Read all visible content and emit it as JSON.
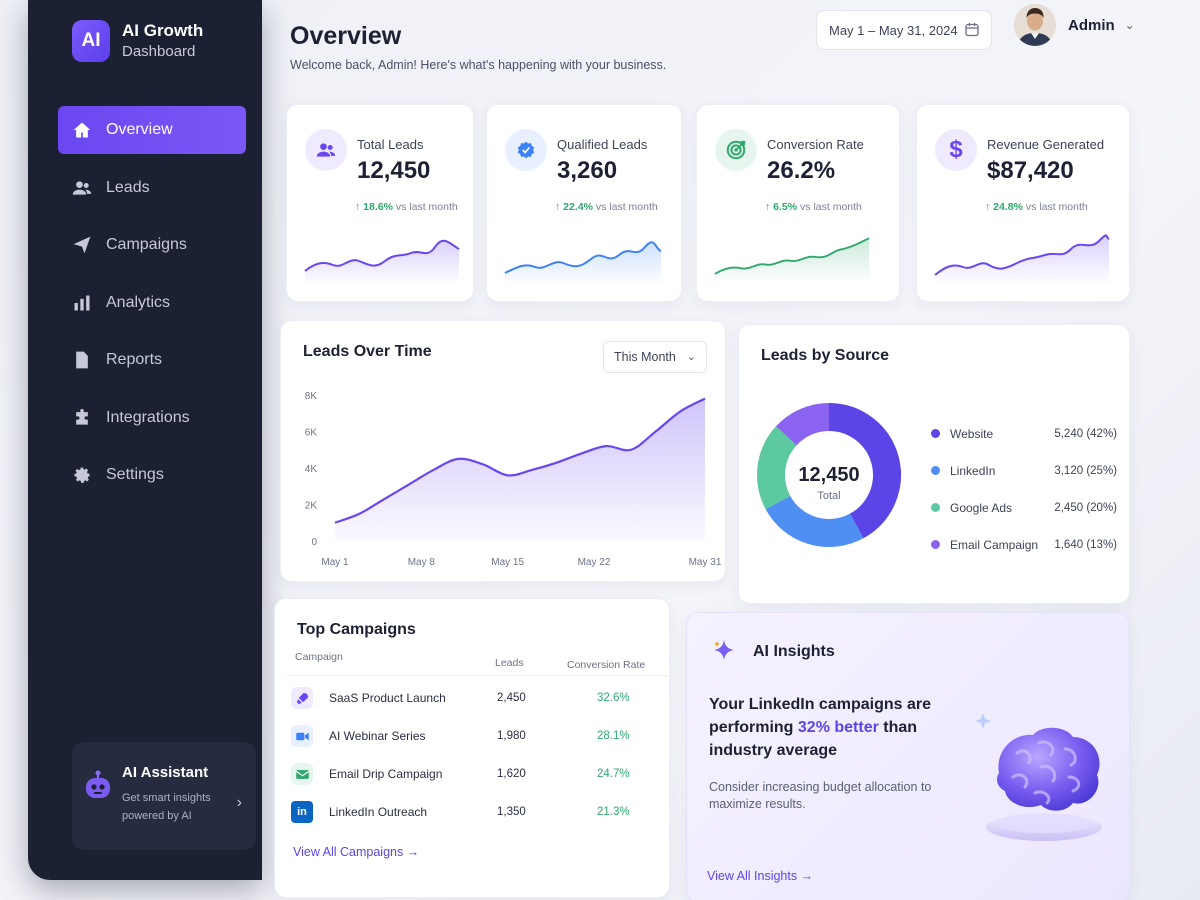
{
  "brand": {
    "logo": "AI",
    "title": "AI Growth",
    "subtitle": "Dashboard"
  },
  "nav": [
    {
      "label": "Overview",
      "icon": "home-icon",
      "active": true
    },
    {
      "label": "Leads",
      "icon": "users-icon"
    },
    {
      "label": "Campaigns",
      "icon": "paper-plane-icon"
    },
    {
      "label": "Analytics",
      "icon": "bar-chart-icon"
    },
    {
      "label": "Reports",
      "icon": "document-icon"
    },
    {
      "label": "Integrations",
      "icon": "puzzle-icon"
    },
    {
      "label": "Settings",
      "icon": "gear-icon"
    }
  ],
  "assistant": {
    "title": "AI Assistant",
    "description": "Get smart insights powered by AI"
  },
  "header": {
    "title": "Overview",
    "subtitle": "Welcome back, Admin! Here's what's happening with your business.",
    "date_range": "May 1 – May 31, 2024",
    "user_name": "Admin"
  },
  "kpis": [
    {
      "label": "Total Leads",
      "value": "12,450",
      "change": "18.6%",
      "change_suffix": "vs last month",
      "icon": "users-icon",
      "color": "#6a47f0"
    },
    {
      "label": "Qualified Leads",
      "value": "3,260",
      "change": "22.4%",
      "change_suffix": "vs last month",
      "icon": "badge-check-icon",
      "color": "#3b82f6"
    },
    {
      "label": "Conversion Rate",
      "value": "26.2%",
      "change": "6.5%",
      "change_suffix": "vs last month",
      "icon": "target-icon",
      "color": "#2ea86c"
    },
    {
      "label": "Revenue Generated",
      "value": "$87,420",
      "change": "24.8%",
      "change_suffix": "vs last month",
      "icon": "dollar-icon",
      "color": "#6a47f0"
    }
  ],
  "leads_over_time": {
    "title": "Leads Over Time",
    "period": "This Month",
    "chart_data": {
      "type": "area",
      "x_ticks": [
        "May 1",
        "May 8",
        "May 15",
        "May 22",
        "May 31"
      ],
      "y_ticks": [
        "0",
        "2K",
        "4K",
        "6K",
        "8K"
      ],
      "ylim": [
        0,
        8000
      ],
      "x": [
        1,
        3,
        5,
        7,
        9,
        11,
        13,
        15,
        17,
        19,
        21,
        23,
        25,
        27,
        29,
        31
      ],
      "values": [
        1000,
        1500,
        2300,
        3100,
        3900,
        4500,
        4200,
        3600,
        3900,
        4300,
        4800,
        5200,
        5000,
        6000,
        7100,
        7800
      ],
      "color": "#6a47f0"
    }
  },
  "leads_by_source": {
    "title": "Leads by Source",
    "total": "12,450",
    "total_label": "Total",
    "chart_data": {
      "type": "pie",
      "categories": [
        "Website",
        "LinkedIn",
        "Google Ads",
        "Email Campaign"
      ],
      "values": [
        5240,
        3120,
        2450,
        1640
      ],
      "labels": [
        "5,240 (42%)",
        "3,120 (25%)",
        "2,450 (20%)",
        "1,640 (13%)"
      ],
      "colors": [
        "#5b45e6",
        "#4f8ef2",
        "#5cc9a0",
        "#8a63f0"
      ]
    }
  },
  "top_campaigns": {
    "title": "Top Campaigns",
    "columns": [
      "Campaign",
      "Leads",
      "Conversion Rate"
    ],
    "rows": [
      {
        "name": "SaaS Product Launch",
        "leads": "2,450",
        "rate": "32.6%",
        "icon": "rocket-icon"
      },
      {
        "name": "AI Webinar Series",
        "leads": "1,980",
        "rate": "28.1%",
        "icon": "video-icon"
      },
      {
        "name": "Email Drip Campaign",
        "leads": "1,620",
        "rate": "24.7%",
        "icon": "mail-icon"
      },
      {
        "name": "LinkedIn Outreach",
        "leads": "1,350",
        "rate": "21.3%",
        "icon": "linkedin-icon"
      }
    ],
    "link": "View All Campaigns →"
  },
  "ai_insights": {
    "title": "AI Insights",
    "headline_pre": "Your LinkedIn campaigns are performing ",
    "headline_hl": "32% better",
    "headline_post": " than industry average",
    "description": "Consider increasing budget allocation to maximize results.",
    "link": "View All Insights →"
  }
}
